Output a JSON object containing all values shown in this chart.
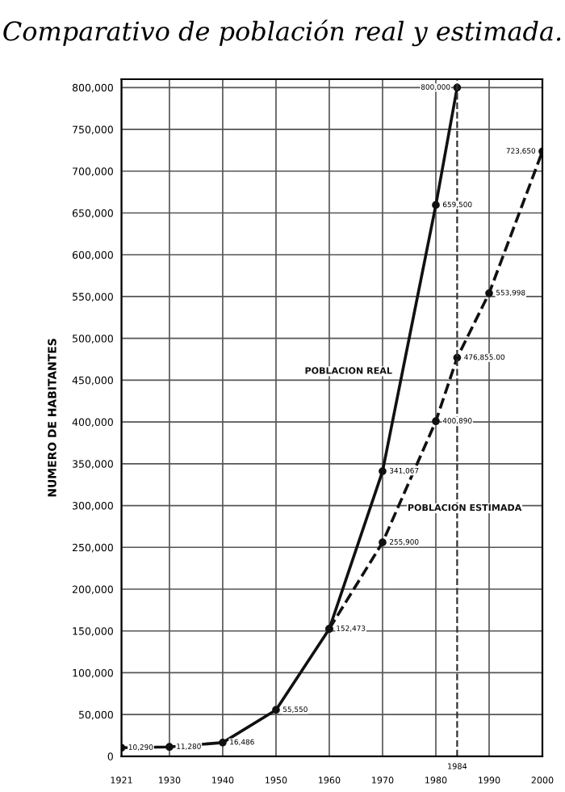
{
  "chart_data": {
    "type": "line",
    "title": "Comparativo de población real y estimada.",
    "ylabel": "NUMERO DE HABITANTES",
    "series": [
      {
        "name": "POBLACION REAL",
        "color": "#111111",
        "line_style": "solid",
        "x": [
          1921,
          1930,
          1940,
          1950,
          1960,
          1970,
          1980,
          1984
        ],
        "values": [
          10290,
          11280,
          16486,
          55550,
          152473,
          341067,
          659500,
          800000
        ],
        "value_labels": [
          "10,290",
          "11,280",
          "16,486",
          "55,550",
          "152,473",
          "341,067",
          "659,500",
          "800,000"
        ]
      },
      {
        "name": "POBLACION ESTIMADA",
        "color": "#111111",
        "line_style": "dashed",
        "x": [
          1960,
          1970,
          1980,
          1984,
          1990,
          2000
        ],
        "values": [
          152473,
          255900,
          400890,
          476855,
          553998,
          723650
        ],
        "value_labels": [
          null,
          "255,900",
          "400,890",
          "476,855.00",
          "553,998",
          "723,650"
        ]
      }
    ],
    "ref_lines": [
      {
        "axis": "x",
        "value": 1984,
        "label": "1984",
        "line_style": "dashed"
      }
    ],
    "xlim": [
      1921,
      2000
    ],
    "xticks": [
      1921,
      1930,
      1940,
      1950,
      1960,
      1970,
      1980,
      1990,
      2000
    ],
    "ylim": [
      0,
      810000
    ],
    "yticks": [
      {
        "value": 0,
        "label": "0"
      },
      {
        "value": 50000,
        "label": "50,000"
      },
      {
        "value": 100000,
        "label": "100,000"
      },
      {
        "value": 150000,
        "label": "150,000"
      },
      {
        "value": 200000,
        "label": "200,000"
      },
      {
        "value": 250000,
        "label": "250,000"
      },
      {
        "value": 300000,
        "label": "300,000"
      },
      {
        "value": 350000,
        "label": "350,000"
      },
      {
        "value": 400000,
        "label": "400,000"
      },
      {
        "value": 450000,
        "label": "450,000"
      },
      {
        "value": 500000,
        "label": "500,000"
      },
      {
        "value": 550000,
        "label": "550,000"
      },
      {
        "value": 600000,
        "label": "600,000"
      },
      {
        "value": 650000,
        "label": "650,000"
      },
      {
        "value": 700000,
        "label": "700,000"
      },
      {
        "value": 750000,
        "label": "750,000"
      },
      {
        "value": 800000,
        "label": "800,000"
      }
    ],
    "grid": true,
    "marker": "circle",
    "legend": false
  }
}
